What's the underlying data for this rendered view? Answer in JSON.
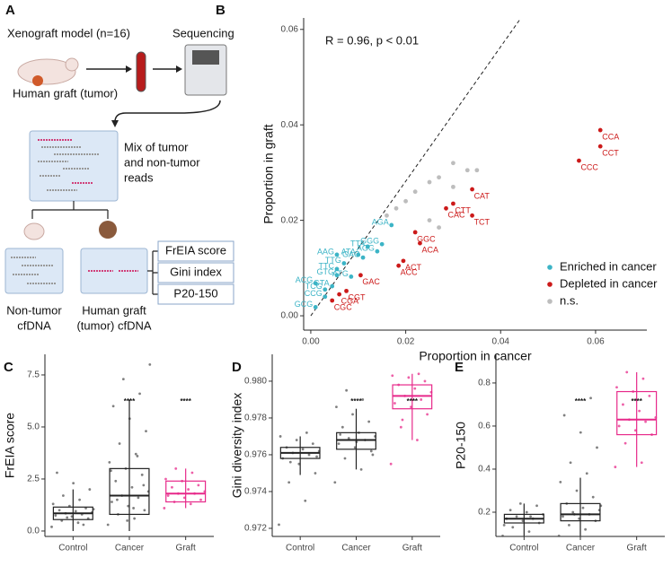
{
  "panel_a": {
    "label": "A",
    "model": "Xenograft model (n=16)",
    "sequencing": "Sequencing",
    "graft": "Human graft (tumor)",
    "mix": [
      "Mix of tumor",
      "and  non-tumor",
      "reads"
    ],
    "non_tumor": [
      "Non-tumor",
      "cfDNA"
    ],
    "human": [
      "Human graft",
      "(tumor) cfDNA"
    ],
    "metrics": [
      "FrEIA score",
      "Gini index",
      "P20-150"
    ]
  },
  "chart_data": [
    {
      "type": "scatter",
      "panel_label": "B",
      "annotation": "R = 0.96, p < 0.01",
      "x_label": "Proportion in cancer",
      "y_label": "Proportion in graft",
      "xlim": [
        -0.0015,
        0.0708
      ],
      "ylim": [
        -0.003,
        0.0624
      ],
      "xticks": [
        {
          "value": 0,
          "label": "0.00"
        },
        {
          "value": 0.02,
          "label": "0.02"
        },
        {
          "value": 0.04,
          "label": "0.04"
        },
        {
          "value": 0.06,
          "label": "0.06"
        }
      ],
      "yticks": [
        {
          "value": 0,
          "label": "0.00"
        },
        {
          "value": 0.02,
          "label": "0.02"
        },
        {
          "value": 0.04,
          "label": "0.04"
        },
        {
          "value": 0.06,
          "label": "0.06"
        }
      ],
      "legend": "bottom-right",
      "fit_line": {
        "x": [
          0,
          0.044
        ],
        "y": [
          0,
          0.062
        ]
      },
      "series": [
        {
          "name": "Enriched in cancer",
          "color": "#3cb4c6",
          "point_labels": [
            "AGA",
            "TTA",
            "GGG",
            "AGG",
            "GAG",
            "ATA",
            "AAG",
            "TTG",
            "TTC",
            "ATG",
            "GTG",
            "ACG",
            "TCG",
            "GTA",
            "CCG",
            "GCG"
          ],
          "x": [
            0.017,
            0.012,
            0.015,
            0.014,
            0.011,
            0.01,
            0.0055,
            0.007,
            0.0055,
            0.0085,
            0.0055,
            0.001,
            0.003,
            0.0045,
            0.003,
            0.001
          ],
          "values": [
            0.019,
            0.0145,
            0.015,
            0.0135,
            0.0122,
            0.0128,
            0.0128,
            0.011,
            0.0098,
            0.0082,
            0.0085,
            0.0068,
            0.0055,
            0.0062,
            0.004,
            0.0018
          ]
        },
        {
          "name": "Depleted in cancer",
          "color": "#cc1a1a",
          "point_labels": [
            "CCA",
            "CCT",
            "CCC",
            "CAT",
            "CTT",
            "CAC",
            "TCT",
            "GGC",
            "ACA",
            "ACT",
            "ACC",
            "GAC",
            "CGT",
            "CGA",
            "CGC"
          ],
          "x": [
            0.061,
            0.061,
            0.0565,
            0.034,
            0.03,
            0.0285,
            0.034,
            0.022,
            0.023,
            0.0195,
            0.0185,
            0.0105,
            0.0075,
            0.006,
            0.0045
          ],
          "values": [
            0.0389,
            0.0355,
            0.0325,
            0.0265,
            0.0235,
            0.0225,
            0.021,
            0.0175,
            0.0152,
            0.0115,
            0.0105,
            0.0085,
            0.0052,
            0.0045,
            0.0032
          ]
        },
        {
          "name": "n.s.",
          "color": "#bdbdbd",
          "x": [
            0.03,
            0.033,
            0.035,
            0.027,
            0.03,
            0.025,
            0.022,
            0.02,
            0.018,
            0.025,
            0.027,
            0.016
          ],
          "values": [
            0.032,
            0.0305,
            0.0305,
            0.029,
            0.027,
            0.028,
            0.026,
            0.024,
            0.0225,
            0.02,
            0.0185,
            0.021
          ]
        }
      ]
    },
    {
      "type": "box",
      "panel_label": "C",
      "y_label": "FrEIA score",
      "categories": [
        "Control",
        "Cancer",
        "Graft"
      ],
      "colors": [
        "#222222",
        "#222222",
        "#e7298a"
      ],
      "significance": [
        null,
        "****",
        "****"
      ],
      "ylim": [
        -0.26,
        8.49
      ],
      "yticks": [
        {
          "value": 0,
          "label": "0.0"
        },
        2.5,
        {
          "value": 5,
          "label": "5.0"
        },
        7.5
      ],
      "q1": [
        0.55,
        0.8,
        1.4
      ],
      "median": [
        0.85,
        1.7,
        1.8
      ],
      "q3": [
        1.15,
        3.0,
        2.4
      ],
      "whisker_low": [
        0.0,
        0.0,
        1.1
      ],
      "whisker_high": [
        2.0,
        6.3,
        3.0
      ],
      "points": [
        [
          0.2,
          0.4,
          0.5,
          0.6,
          0.7,
          0.75,
          0.8,
          0.85,
          0.9,
          0.95,
          1.0,
          1.1,
          1.2,
          1.3,
          1.5,
          1.7,
          2.0,
          2.3,
          2.8,
          0.3,
          0.65,
          1.05
        ],
        [
          0.3,
          0.6,
          0.8,
          1.0,
          1.2,
          1.4,
          1.6,
          1.7,
          1.9,
          2.1,
          2.4,
          2.7,
          3.0,
          3.3,
          3.7,
          4.2,
          4.8,
          5.4,
          6.0,
          6.6,
          7.3,
          8.0,
          1.1,
          1.5,
          2.2,
          0.5,
          2.9,
          3.6
        ],
        [
          1.1,
          1.3,
          1.4,
          1.5,
          1.6,
          1.7,
          1.8,
          1.8,
          1.9,
          2.0,
          2.1,
          2.2,
          2.4,
          2.5,
          2.8,
          3.0
        ]
      ]
    },
    {
      "type": "box",
      "panel_label": "D",
      "y_label": "Gini diversity index",
      "categories": [
        "Control",
        "Cancer",
        "Graft"
      ],
      "colors": [
        "#222222",
        "#222222",
        "#e7298a"
      ],
      "significance": [
        null,
        "****",
        "****"
      ],
      "ylim": [
        0.97156,
        0.98146
      ],
      "yticks": [
        0.972,
        0.974,
        0.976,
        0.978,
        {
          "value": 0.98,
          "label": "0.980"
        }
      ],
      "q1": [
        0.9758,
        0.9763,
        0.9785
      ],
      "median": [
        0.9761,
        0.9768,
        0.9792
      ],
      "q3": [
        0.9764,
        0.9772,
        0.9798
      ],
      "whisker_low": [
        0.9749,
        0.9752,
        0.9768
      ],
      "whisker_high": [
        0.977,
        0.9785,
        0.9804
      ],
      "points": [
        [
          0.9722,
          0.9735,
          0.9745,
          0.975,
          0.9755,
          0.9758,
          0.976,
          0.9761,
          0.9762,
          0.9763,
          0.9764,
          0.9766,
          0.9768,
          0.977,
          0.9772,
          0.9756,
          0.9759
        ],
        [
          0.9745,
          0.9752,
          0.9758,
          0.9762,
          0.9764,
          0.9766,
          0.9768,
          0.9769,
          0.977,
          0.9772,
          0.9775,
          0.9778,
          0.9782,
          0.9786,
          0.979,
          0.9795,
          0.976,
          0.9767,
          0.9771
        ],
        [
          0.9755,
          0.9768,
          0.9775,
          0.9782,
          0.9786,
          0.9788,
          0.979,
          0.9792,
          0.9794,
          0.9796,
          0.9798,
          0.98,
          0.9802,
          0.9803,
          0.9804,
          0.9779
        ]
      ]
    },
    {
      "type": "box",
      "panel_label": "E",
      "y_label": "P20-150",
      "categories": [
        "Control",
        "Cancer",
        "Graft"
      ],
      "colors": [
        "#222222",
        "#222222",
        "#e7298a"
      ],
      "significance": [
        null,
        "****",
        "****"
      ],
      "ylim": [
        0.0875,
        0.933
      ],
      "yticks": [
        0.2,
        0.4,
        0.6,
        0.8
      ],
      "q1": [
        0.15,
        0.16,
        0.56
      ],
      "median": [
        0.17,
        0.19,
        0.63
      ],
      "q3": [
        0.19,
        0.24,
        0.76
      ],
      "whisker_low": [
        0.09,
        0.09,
        0.41
      ],
      "whisker_high": [
        0.24,
        0.36,
        0.85
      ],
      "points": [
        [
          0.09,
          0.11,
          0.13,
          0.15,
          0.16,
          0.17,
          0.17,
          0.18,
          0.19,
          0.2,
          0.21,
          0.23,
          0.24,
          0.14,
          0.18
        ],
        [
          0.09,
          0.12,
          0.14,
          0.16,
          0.17,
          0.18,
          0.19,
          0.2,
          0.21,
          0.22,
          0.24,
          0.27,
          0.3,
          0.34,
          0.38,
          0.43,
          0.5,
          0.57,
          0.65,
          0.73,
          0.19,
          0.23
        ],
        [
          0.41,
          0.43,
          0.52,
          0.56,
          0.58,
          0.6,
          0.62,
          0.63,
          0.64,
          0.67,
          0.7,
          0.74,
          0.76,
          0.78,
          0.82,
          0.85
        ]
      ]
    }
  ]
}
